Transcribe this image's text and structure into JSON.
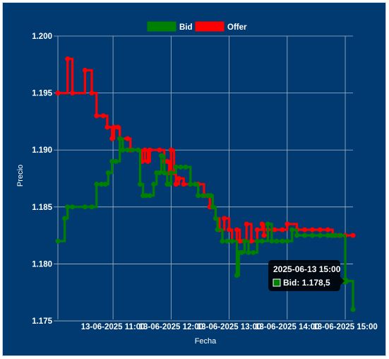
{
  "chart_data": {
    "type": "line",
    "xlabel": "Fecha",
    "ylabel": "Precio",
    "ylim": [
      1.1755,
      1.2
    ],
    "y_ticks": [
      "1.175",
      "1.180",
      "1.185",
      "1.190",
      "1.195",
      "1.200"
    ],
    "x_ticks": [
      "13-06-2025 11:00",
      "13-06-2025 12:00",
      "13-06-2025 13:00",
      "13-06-2025 14:00",
      "13-06-2025 15:00"
    ],
    "x_range": [
      "2025-06-13 10:03",
      "2025-06-13 15:08"
    ],
    "grid": true,
    "legend_position": "top",
    "series": [
      {
        "name": "Offer",
        "color": "#ff0000",
        "points": [
          [
            "10:03",
            1.195
          ],
          [
            "10:13",
            1.198
          ],
          [
            "10:18",
            1.195
          ],
          [
            "10:31",
            1.197
          ],
          [
            "10:38",
            1.195
          ],
          [
            "10:43",
            1.193
          ],
          [
            "10:50",
            1.193
          ],
          [
            "10:54",
            1.192
          ],
          [
            "10:59",
            1.191
          ],
          [
            "11:01",
            1.192
          ],
          [
            "11:05",
            1.192
          ],
          [
            "11:07",
            1.191
          ],
          [
            "11:15",
            1.191
          ],
          [
            "11:18",
            1.19
          ],
          [
            "11:26",
            1.19
          ],
          [
            "11:30",
            1.189
          ],
          [
            "11:33",
            1.19
          ],
          [
            "11:36",
            1.189
          ],
          [
            "11:38",
            1.19
          ],
          [
            "11:48",
            1.19
          ],
          [
            "11:53",
            1.189
          ],
          [
            "11:56",
            1.189
          ],
          [
            "11:58",
            1.188
          ],
          [
            "12:00",
            1.19
          ],
          [
            "12:03",
            1.188
          ],
          [
            "12:05",
            1.187
          ],
          [
            "12:08",
            1.1875
          ],
          [
            "12:13",
            1.187
          ],
          [
            "12:20",
            1.187
          ],
          [
            "12:28",
            1.187
          ],
          [
            "12:34",
            1.186
          ],
          [
            "12:38",
            1.186
          ],
          [
            "12:40",
            1.185
          ],
          [
            "12:43",
            1.185
          ],
          [
            "12:46",
            1.184
          ],
          [
            "12:50",
            1.183
          ],
          [
            "12:55",
            1.184
          ],
          [
            "13:00",
            1.183
          ],
          [
            "13:03",
            1.182
          ],
          [
            "13:08",
            1.183
          ],
          [
            "13:11",
            1.182
          ],
          [
            "13:15",
            1.182
          ],
          [
            "13:18",
            1.1835
          ],
          [
            "13:23",
            1.182
          ],
          [
            "13:29",
            1.183
          ],
          [
            "13:34",
            1.1835
          ],
          [
            "13:36",
            1.1825
          ],
          [
            "13:40",
            1.183
          ],
          [
            "13:47",
            1.183
          ],
          [
            "13:55",
            1.183
          ],
          [
            "14:00",
            1.1835
          ],
          [
            "14:10",
            1.183
          ],
          [
            "14:18",
            1.183
          ],
          [
            "14:26",
            1.183
          ],
          [
            "14:34",
            1.183
          ],
          [
            "14:42",
            1.183
          ],
          [
            "14:47",
            1.1825
          ],
          [
            "14:54",
            1.1825
          ],
          [
            "15:00",
            1.1825
          ],
          [
            "15:08",
            1.1825
          ]
        ]
      },
      {
        "name": "Bid",
        "color": "#008000",
        "points": [
          [
            "10:03",
            1.182
          ],
          [
            "10:10",
            1.184
          ],
          [
            "10:13",
            1.185
          ],
          [
            "10:18",
            1.185
          ],
          [
            "10:31",
            1.185
          ],
          [
            "10:38",
            1.185
          ],
          [
            "10:43",
            1.187
          ],
          [
            "10:48",
            1.187
          ],
          [
            "10:52",
            1.187
          ],
          [
            "10:55",
            1.188
          ],
          [
            "10:59",
            1.189
          ],
          [
            "11:03",
            1.189
          ],
          [
            "11:07",
            1.191
          ],
          [
            "11:10",
            1.19
          ],
          [
            "11:15",
            1.19
          ],
          [
            "11:20",
            1.19
          ],
          [
            "11:26",
            1.19
          ],
          [
            "11:28",
            1.187
          ],
          [
            "11:31",
            1.186
          ],
          [
            "11:34",
            1.186
          ],
          [
            "11:38",
            1.186
          ],
          [
            "11:42",
            1.187
          ],
          [
            "11:45",
            1.188
          ],
          [
            "11:48",
            1.188
          ],
          [
            "11:50",
            1.1895
          ],
          [
            "11:53",
            1.188
          ],
          [
            "11:56",
            1.187
          ],
          [
            "11:58",
            1.187
          ],
          [
            "12:00",
            1.188
          ],
          [
            "12:05",
            1.1885
          ],
          [
            "12:10",
            1.1885
          ],
          [
            "12:15",
            1.1885
          ],
          [
            "12:20",
            1.187
          ],
          [
            "12:25",
            1.187
          ],
          [
            "12:28",
            1.186
          ],
          [
            "12:33",
            1.186
          ],
          [
            "12:38",
            1.186
          ],
          [
            "12:41",
            1.186
          ],
          [
            "12:43",
            1.185
          ],
          [
            "12:46",
            1.184
          ],
          [
            "12:48",
            1.183
          ],
          [
            "12:53",
            1.182
          ],
          [
            "12:58",
            1.182
          ],
          [
            "13:03",
            1.182
          ],
          [
            "13:08",
            1.179
          ],
          [
            "13:10",
            1.181
          ],
          [
            "13:13",
            1.181
          ],
          [
            "13:16",
            1.182
          ],
          [
            "13:20",
            1.181
          ],
          [
            "13:25",
            1.181
          ],
          [
            "13:29",
            1.182
          ],
          [
            "13:34",
            1.182
          ],
          [
            "13:40",
            1.1835
          ],
          [
            "13:44",
            1.182
          ],
          [
            "13:49",
            1.182
          ],
          [
            "13:55",
            1.182
          ],
          [
            "14:00",
            1.182
          ],
          [
            "14:05",
            1.183
          ],
          [
            "14:10",
            1.1825
          ],
          [
            "14:18",
            1.1825
          ],
          [
            "14:26",
            1.1825
          ],
          [
            "14:34",
            1.1825
          ],
          [
            "14:42",
            1.1825
          ],
          [
            "14:46",
            1.1825
          ],
          [
            "14:50",
            1.1825
          ],
          [
            "14:55",
            1.1825
          ],
          [
            "15:00",
            1.1785
          ],
          [
            "15:08",
            1.176
          ]
        ]
      }
    ],
    "tooltip": {
      "title": "2025-06-13 15:00",
      "text": "Bid: 1.178,5",
      "series": "Bid",
      "x": "15:00",
      "y": 1.1785
    }
  }
}
